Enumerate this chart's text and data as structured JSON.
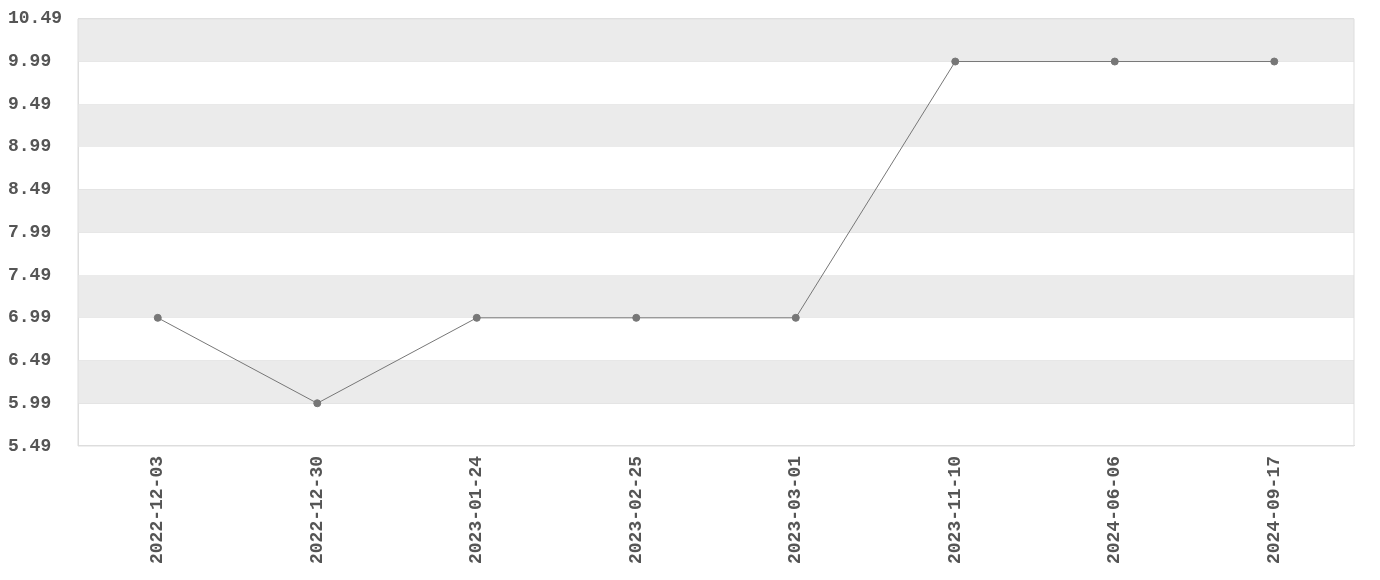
{
  "chart_data": {
    "type": "line",
    "categories": [
      "2022-12-03",
      "2022-12-30",
      "2023-01-24",
      "2023-02-25",
      "2023-03-01",
      "2023-11-10",
      "2024-06-06",
      "2024-09-17"
    ],
    "series": [
      {
        "color": "#777777",
        "values": [
          6.99,
          5.99,
          6.99,
          6.99,
          6.99,
          9.99,
          9.99,
          9.99
        ]
      }
    ],
    "ylim": [
      5.49,
      10.49
    ],
    "yticks": [
      5.49,
      5.99,
      6.49,
      6.99,
      7.49,
      7.99,
      8.49,
      8.99,
      9.49,
      9.99,
      10.49
    ],
    "grid": "y",
    "legend": false,
    "marker": "circle",
    "line_style": "solid"
  }
}
